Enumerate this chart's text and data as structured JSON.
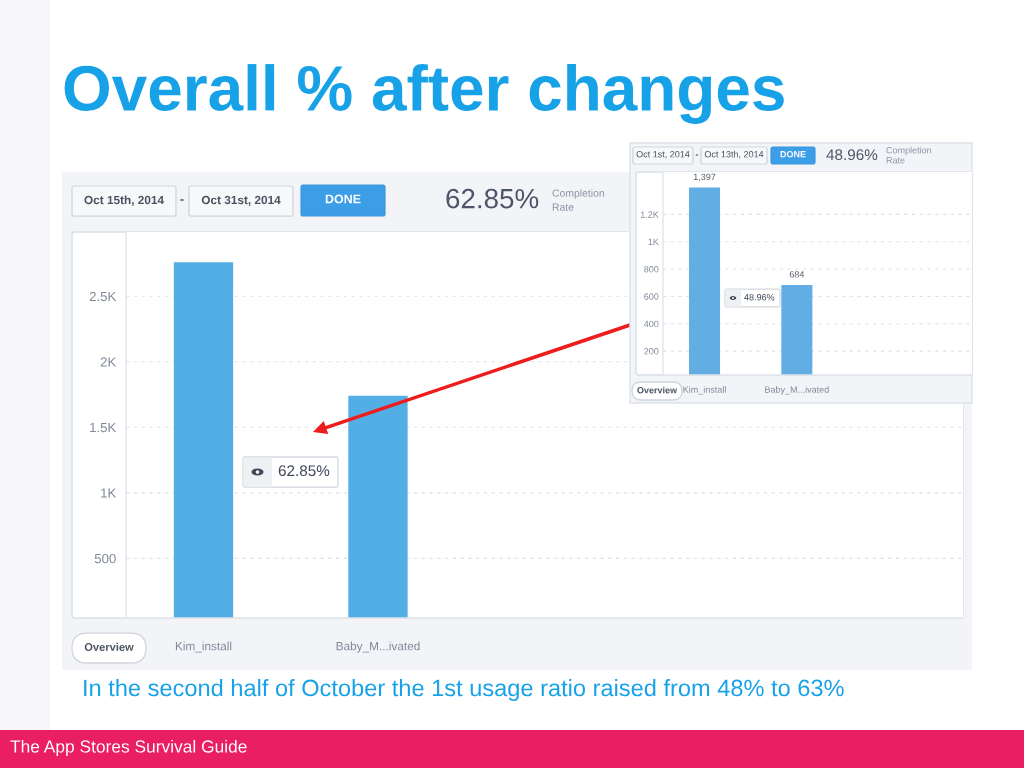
{
  "chart_data": [
    {
      "type": "bar",
      "title": "Overall % after changes",
      "categories": [
        "Kim_install",
        "Baby_M...ivated"
      ],
      "values": [
        2760,
        1740
      ],
      "color": "#53aee6",
      "ylim": [
        45,
        2990
      ],
      "yticks": [
        500,
        {
          "value": 1000,
          "label": "1K"
        },
        {
          "value": 1500,
          "label": "1.5K"
        },
        {
          "value": 2000,
          "label": "2K"
        },
        {
          "value": 2500,
          "label": "2.5K"
        }
      ],
      "grid": "y",
      "annotations": [
        "Oct 15th, 2014",
        "-",
        "Oct 31st, 2014",
        "DONE",
        "62.85%",
        "Completion",
        "Rate",
        "Overview",
        "62.85%",
        "In the second half of October the 1st usage ratio raised from 48% to 63%",
        "The App Stores Survival Guide"
      ]
    },
    {
      "type": "bar",
      "categories": [
        "Kim_install",
        "Baby_M...ivated"
      ],
      "values": [
        1397,
        684
      ],
      "value_labels": [
        "1,397",
        "684"
      ],
      "color": "#62ade4",
      "ylim": [
        25,
        1510
      ],
      "yticks": [
        200,
        400,
        600,
        800,
        {
          "value": 1000,
          "label": "1K"
        },
        {
          "value": 1200,
          "label": "1.2K"
        }
      ],
      "grid": "y",
      "annotations": [
        "Oct 1st, 2014",
        "-",
        "Oct 13th, 2014",
        "DONE",
        "48.96%",
        "Completion",
        "Rate",
        "Overview",
        "48.96%"
      ]
    }
  ]
}
